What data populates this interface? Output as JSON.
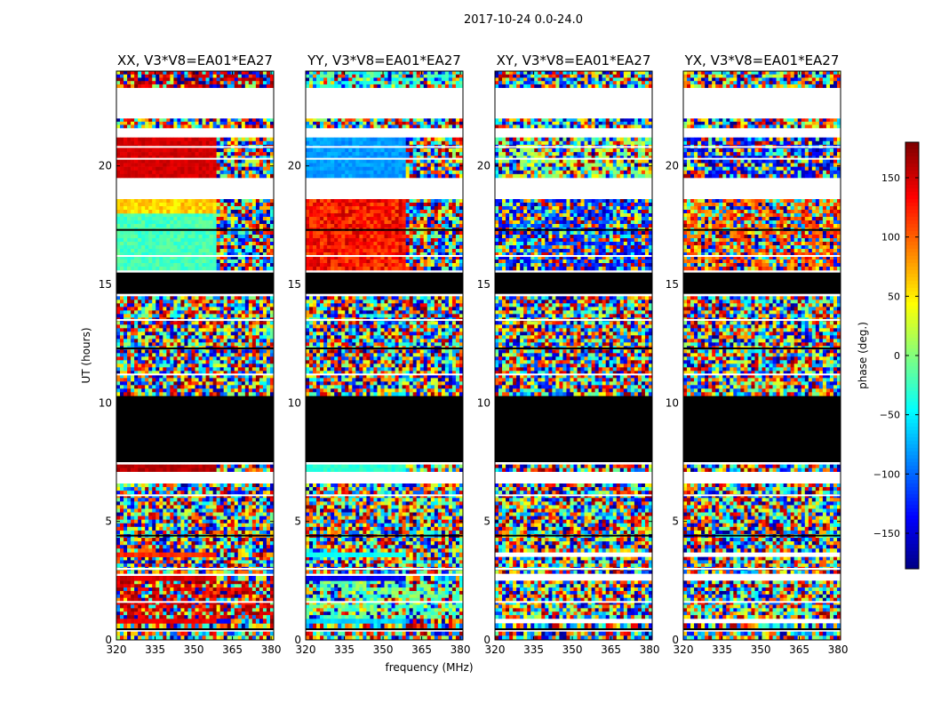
{
  "figure_title": "2017-10-24 0.0-24.0",
  "chart_data": {
    "type": "heatmap",
    "title": "2017-10-24 0.0-24.0",
    "xlabel": "frequency (MHz)",
    "ylabel": "UT (hours)",
    "xlim": [
      320,
      381
    ],
    "ylim": [
      0,
      24
    ],
    "x_ticks": [
      320,
      335,
      350,
      365,
      380
    ],
    "y_ticks": [
      0,
      5,
      10,
      15,
      20
    ],
    "colormap": "jet",
    "colorbar": {
      "label": "phase (deg.)",
      "range": [
        -180,
        180
      ],
      "ticks": [
        -150,
        -100,
        -50,
        0,
        50,
        100,
        150
      ],
      "tick_labels": [
        "−150",
        "−100",
        "−50",
        "0",
        "50",
        "100",
        "150"
      ]
    },
    "panels": [
      {
        "title": "XX, V3*V8=EA01*EA27",
        "blocks": [
          {
            "t0": 0.0,
            "t1": 0.35,
            "kind": "noise"
          },
          {
            "t0": 0.5,
            "t1": 0.7,
            "kind": "noise"
          },
          {
            "t0": 0.7,
            "t1": 0.9,
            "kind": "phase",
            "phase": 140
          },
          {
            "t0": 0.9,
            "t1": 2.5,
            "kind": "noise",
            "phase": 150,
            "bias": 0.55
          },
          {
            "t0": 2.5,
            "t1": 2.7,
            "kind": "phase",
            "phase": 150
          },
          {
            "t0": 2.8,
            "t1": 3.5,
            "kind": "noise"
          },
          {
            "t0": 3.5,
            "t1": 3.7,
            "kind": "phase",
            "phase": 120
          },
          {
            "t0": 3.7,
            "t1": 6.6,
            "kind": "noise"
          },
          {
            "t0": 7.1,
            "t1": 7.4,
            "kind": "phase",
            "phase": 160
          },
          {
            "t0": 7.5,
            "t1": 10.3,
            "kind": "black"
          },
          {
            "t0": 10.3,
            "t1": 14.5,
            "kind": "noise"
          },
          {
            "t0": 14.6,
            "t1": 15.5,
            "kind": "black"
          },
          {
            "t0": 15.6,
            "t1": 18.6,
            "kind": "phase",
            "phase": -20,
            "spread": 30
          },
          {
            "t0": 18.0,
            "t1": 18.6,
            "kind": "phase",
            "phase": 60,
            "spread": 40
          },
          {
            "t0": 19.5,
            "t1": 21.2,
            "kind": "phase",
            "phase": 150,
            "spread": 20
          },
          {
            "t0": 21.6,
            "t1": 22.0,
            "kind": "noise"
          },
          {
            "t0": 23.3,
            "t1": 24.0,
            "kind": "noise",
            "phase": 160,
            "bias": 0.5
          }
        ]
      },
      {
        "title": "YY, V3*V8=EA01*EA27",
        "blocks": [
          {
            "t0": 0.0,
            "t1": 0.35,
            "kind": "noise"
          },
          {
            "t0": 0.5,
            "t1": 0.7,
            "kind": "noise"
          },
          {
            "t0": 0.7,
            "t1": 0.9,
            "kind": "phase",
            "phase": -60
          },
          {
            "t0": 0.9,
            "t1": 2.5,
            "kind": "noise",
            "phase": -10,
            "bias": 0.5
          },
          {
            "t0": 2.5,
            "t1": 2.7,
            "kind": "phase",
            "phase": -140
          },
          {
            "t0": 2.8,
            "t1": 3.5,
            "kind": "noise"
          },
          {
            "t0": 3.5,
            "t1": 3.7,
            "kind": "phase",
            "phase": -40
          },
          {
            "t0": 3.7,
            "t1": 6.6,
            "kind": "noise"
          },
          {
            "t0": 7.1,
            "t1": 7.4,
            "kind": "phase",
            "phase": -30
          },
          {
            "t0": 7.5,
            "t1": 10.3,
            "kind": "black"
          },
          {
            "t0": 10.3,
            "t1": 14.5,
            "kind": "noise"
          },
          {
            "t0": 14.6,
            "t1": 15.5,
            "kind": "black"
          },
          {
            "t0": 15.6,
            "t1": 18.6,
            "kind": "phase",
            "phase": 130,
            "spread": 60
          },
          {
            "t0": 19.5,
            "t1": 21.2,
            "kind": "phase",
            "phase": -80,
            "spread": 25
          },
          {
            "t0": 21.6,
            "t1": 22.0,
            "kind": "noise"
          },
          {
            "t0": 23.3,
            "t1": 24.0,
            "kind": "noise",
            "phase": -30,
            "bias": 0.5
          }
        ]
      },
      {
        "title": "XY, V3*V8=EA01*EA27",
        "blocks": [
          {
            "t0": 0.0,
            "t1": 0.35,
            "kind": "noise"
          },
          {
            "t0": 0.5,
            "t1": 0.7,
            "kind": "noise"
          },
          {
            "t0": 0.9,
            "t1": 2.5,
            "kind": "noise"
          },
          {
            "t0": 2.8,
            "t1": 3.5,
            "kind": "noise"
          },
          {
            "t0": 3.7,
            "t1": 6.6,
            "kind": "noise"
          },
          {
            "t0": 7.1,
            "t1": 7.4,
            "kind": "noise"
          },
          {
            "t0": 7.5,
            "t1": 10.3,
            "kind": "black"
          },
          {
            "t0": 10.3,
            "t1": 14.5,
            "kind": "noise"
          },
          {
            "t0": 14.6,
            "t1": 15.5,
            "kind": "black"
          },
          {
            "t0": 15.6,
            "t1": 18.6,
            "kind": "noise",
            "phase": -120,
            "bias": 0.35
          },
          {
            "t0": 19.5,
            "t1": 21.2,
            "kind": "noise",
            "phase": 10,
            "bias": 0.35
          },
          {
            "t0": 21.6,
            "t1": 22.0,
            "kind": "noise"
          },
          {
            "t0": 23.3,
            "t1": 24.0,
            "kind": "noise"
          }
        ]
      },
      {
        "title": "YX, V3*V8=EA01*EA27",
        "blocks": [
          {
            "t0": 0.0,
            "t1": 0.35,
            "kind": "noise"
          },
          {
            "t0": 0.5,
            "t1": 0.7,
            "kind": "noise"
          },
          {
            "t0": 0.9,
            "t1": 2.5,
            "kind": "noise"
          },
          {
            "t0": 2.8,
            "t1": 3.5,
            "kind": "noise"
          },
          {
            "t0": 3.7,
            "t1": 6.6,
            "kind": "noise"
          },
          {
            "t0": 7.1,
            "t1": 7.4,
            "kind": "noise"
          },
          {
            "t0": 7.5,
            "t1": 10.3,
            "kind": "black"
          },
          {
            "t0": 10.3,
            "t1": 14.5,
            "kind": "noise"
          },
          {
            "t0": 14.6,
            "t1": 15.5,
            "kind": "black"
          },
          {
            "t0": 15.6,
            "t1": 18.6,
            "kind": "noise",
            "phase": 100,
            "bias": 0.35
          },
          {
            "t0": 19.5,
            "t1": 21.2,
            "kind": "noise",
            "phase": -140,
            "bias": 0.35
          },
          {
            "t0": 21.6,
            "t1": 22.0,
            "kind": "noise"
          },
          {
            "t0": 23.3,
            "t1": 24.0,
            "kind": "noise"
          }
        ]
      }
    ]
  }
}
